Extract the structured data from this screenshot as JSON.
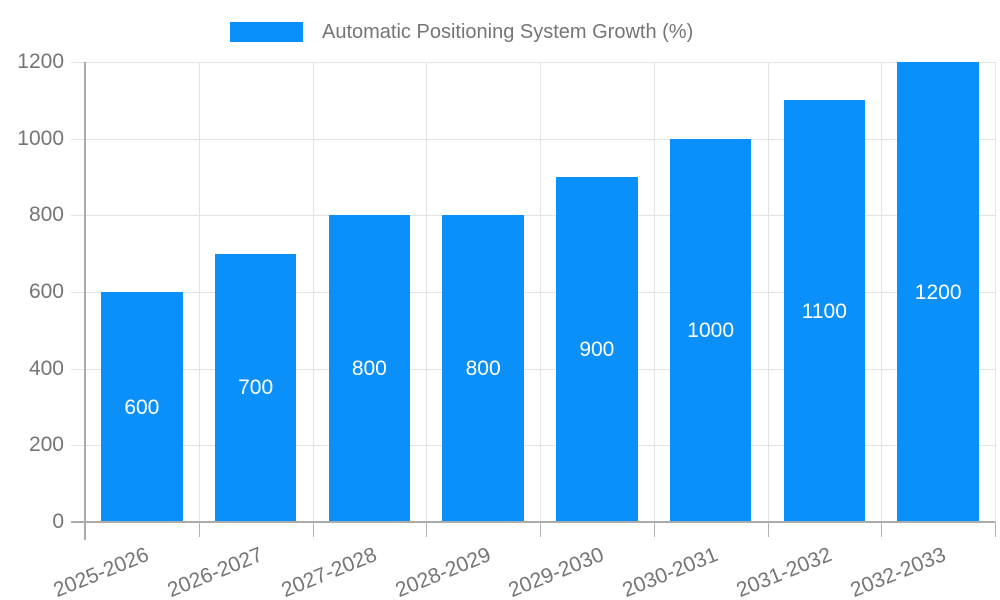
{
  "chart_data": {
    "type": "bar",
    "title": "Automatic Positioning System Growth (%)",
    "categories": [
      "2025-2026",
      "2026-2027",
      "2027-2028",
      "2028-2029",
      "2029-2030",
      "2030-2031",
      "2031-2032",
      "2032-2033"
    ],
    "values": [
      600,
      700,
      800,
      800,
      900,
      1000,
      1100,
      1200
    ],
    "xlabel": "",
    "ylabel": "",
    "ylim": [
      0,
      1200
    ],
    "yticks": [
      0,
      200,
      400,
      600,
      800,
      1000,
      1200
    ],
    "grid": true,
    "legend_position": "top-center",
    "colors": {
      "bar": "#0a90f8",
      "axis": "#ababab",
      "grid": "#e3e3e3",
      "tick": "#b3b3b3",
      "text": "#757575",
      "value_label": "#ffffff"
    }
  }
}
